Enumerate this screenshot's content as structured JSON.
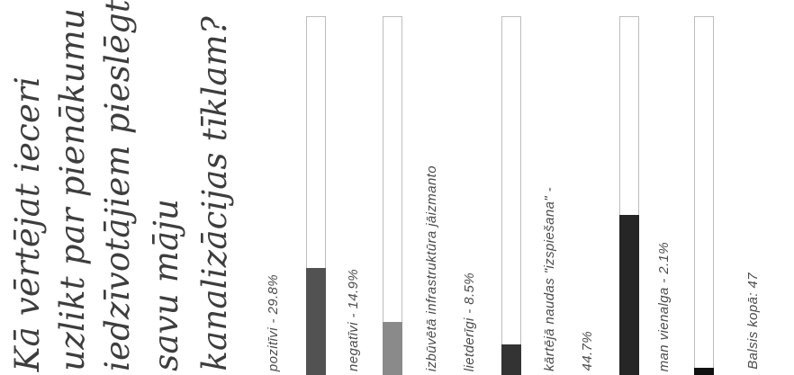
{
  "poll": {
    "question_lines": [
      "Kā vērtējat ieceri",
      "uzlikt par pienākumu",
      "iedzīvotājiem pieslēgt",
      "savu māju",
      "kanalizācijas tīklam?"
    ],
    "options": [
      {
        "label_lines": [
          "pozitīvi - 29.8%"
        ],
        "percent": 29.8,
        "color": "#525252"
      },
      {
        "label_lines": [
          "negatīvi - 14.9%"
        ],
        "percent": 14.9,
        "color": "#8a8a8a"
      },
      {
        "label_lines": [
          "izbūvētā infrastruktūra jāizmanto",
          "lietderīgi - 8.5%"
        ],
        "percent": 8.5,
        "color": "#333333"
      },
      {
        "label_lines": [
          "kārtējā naudas \"izspiešana\" -",
          "44.7%"
        ],
        "percent": 44.7,
        "color": "#262626"
      },
      {
        "label_lines": [
          "man vienalga - 2.1%"
        ],
        "percent": 2.1,
        "color": "#111111"
      }
    ],
    "total_label": "Balsis kopā: 47"
  }
}
